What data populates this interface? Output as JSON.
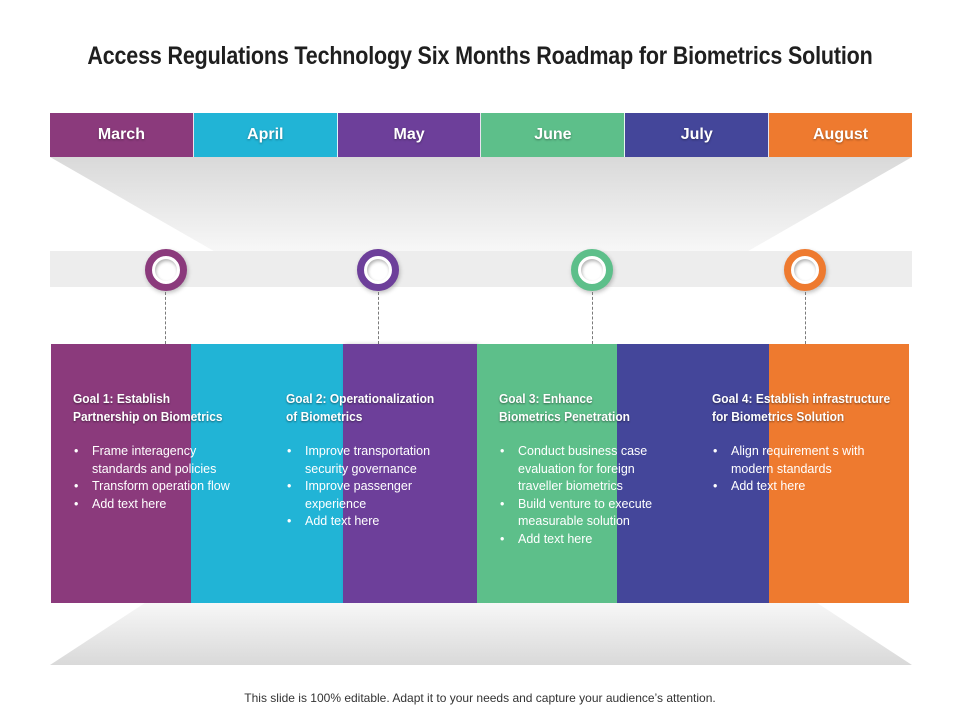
{
  "title": "Access Regulations Technology Six Months Roadmap for Biometrics Solution",
  "months": [
    {
      "label": "March",
      "color": "#8b3a7c"
    },
    {
      "label": "April",
      "color": "#21b4d6"
    },
    {
      "label": "May",
      "color": "#6d3f9a"
    },
    {
      "label": "June",
      "color": "#5dbf8a"
    },
    {
      "label": "July",
      "color": "#44469a"
    },
    {
      "label": "August",
      "color": "#ee7a2f"
    }
  ],
  "columns": [
    {
      "color": "#8b3a7c"
    },
    {
      "color": "#21b4d6"
    },
    {
      "color": "#6d3f9a"
    },
    {
      "color": "#5dbf8a"
    },
    {
      "color": "#44469a"
    },
    {
      "color": "#ee7a2f"
    }
  ],
  "markers": [
    {
      "color": "#8b3a7c"
    },
    {
      "color": "#6d3f9a"
    },
    {
      "color": "#5dbf8a"
    },
    {
      "color": "#ee7a2f"
    }
  ],
  "goals": [
    {
      "title_line1": "Goal 1: Establish",
      "title_line2": "Partnership on Biometrics",
      "bullets": [
        "Frame interagency",
        "standards and policies",
        "Transform operation flow",
        "Add text here"
      ]
    },
    {
      "title_line1": "Goal 2: Operationalization",
      "title_line2": "of Biometrics",
      "bullets": [
        "Improve transportation",
        "security governance",
        "Improve passenger",
        "experience",
        "Add text here"
      ]
    },
    {
      "title_line1": "Goal 3: Enhance",
      "title_line2": "Biometrics Penetration",
      "bullets": [
        "Conduct business case",
        "evaluation for foreign",
        "traveller biometrics",
        "Build venture to execute",
        "measurable solution",
        "Add text here"
      ]
    },
    {
      "title_line1": "Goal 4: Establish infrastructure",
      "title_line2": "for Biometrics Solution",
      "bullets": [
        "Align requirement s with",
        "modern standards",
        "Add text here"
      ]
    }
  ],
  "footer": "This slide is 100% editable. Adapt it to your needs and capture your audience’s attention."
}
